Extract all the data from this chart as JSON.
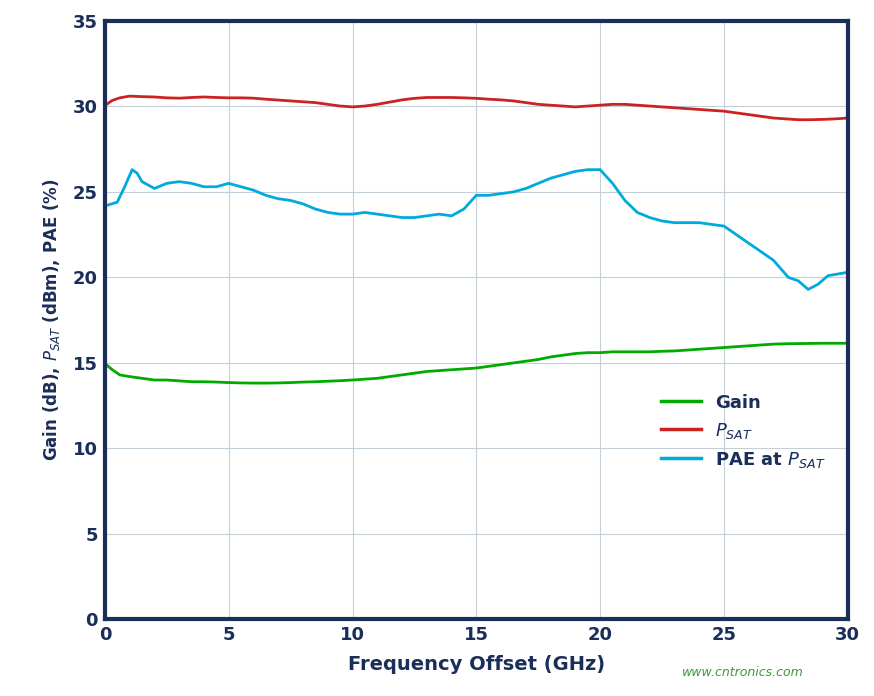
{
  "xlabel": "Frequency Offset (GHz)",
  "xlim": [
    0,
    30
  ],
  "ylim": [
    0,
    35
  ],
  "xticks": [
    0,
    5,
    10,
    15,
    20,
    25,
    30
  ],
  "yticks": [
    0,
    5,
    10,
    15,
    20,
    25,
    30,
    35
  ],
  "bg_color": "#ffffff",
  "grid_color": "#c5cfd8",
  "axis_color": "#1a2e5a",
  "tick_color": "#1a2e5a",
  "label_color": "#1a2e5a",
  "watermark": "www.cntronics.com",
  "watermark_color": "#3a9a3a",
  "line_width": 2.0,
  "gain_color": "#00aa00",
  "psat_color": "#cc2222",
  "pae_color": "#00aadd",
  "gain_x": [
    0.05,
    0.3,
    0.6,
    1.0,
    1.5,
    2.0,
    2.5,
    3.0,
    3.5,
    4.0,
    4.5,
    5.0,
    5.5,
    6.0,
    6.5,
    7.0,
    7.5,
    8.0,
    8.5,
    9.0,
    9.5,
    10.0,
    10.5,
    11.0,
    11.5,
    12.0,
    12.5,
    13.0,
    13.5,
    14.0,
    14.5,
    15.0,
    15.5,
    16.0,
    16.5,
    17.0,
    17.5,
    18.0,
    18.5,
    19.0,
    19.5,
    20.0,
    20.5,
    21.0,
    21.5,
    22.0,
    22.5,
    23.0,
    23.5,
    24.0,
    24.5,
    25.0,
    25.5,
    26.0,
    26.5,
    27.0,
    27.5,
    28.0,
    28.5,
    29.0,
    29.5,
    30.0
  ],
  "gain_y": [
    14.9,
    14.6,
    14.3,
    14.2,
    14.1,
    14.0,
    14.0,
    13.95,
    13.9,
    13.9,
    13.88,
    13.85,
    13.83,
    13.82,
    13.82,
    13.83,
    13.85,
    13.88,
    13.9,
    13.93,
    13.96,
    14.0,
    14.05,
    14.1,
    14.2,
    14.3,
    14.4,
    14.5,
    14.55,
    14.6,
    14.65,
    14.7,
    14.8,
    14.9,
    15.0,
    15.1,
    15.2,
    15.35,
    15.45,
    15.55,
    15.6,
    15.6,
    15.65,
    15.65,
    15.65,
    15.65,
    15.68,
    15.7,
    15.75,
    15.8,
    15.85,
    15.9,
    15.95,
    16.0,
    16.05,
    16.1,
    16.12,
    16.13,
    16.14,
    16.15,
    16.15,
    16.15
  ],
  "psat_x": [
    0.05,
    0.3,
    0.6,
    1.0,
    1.5,
    2.0,
    2.5,
    3.0,
    3.5,
    4.0,
    4.5,
    5.0,
    5.5,
    6.0,
    6.5,
    7.0,
    7.5,
    8.0,
    8.5,
    9.0,
    9.5,
    10.0,
    10.5,
    11.0,
    11.5,
    12.0,
    12.5,
    13.0,
    13.5,
    14.0,
    14.5,
    15.0,
    15.5,
    16.0,
    16.5,
    17.0,
    17.5,
    18.0,
    18.5,
    19.0,
    19.5,
    20.0,
    20.5,
    21.0,
    21.5,
    22.0,
    22.5,
    23.0,
    23.5,
    24.0,
    24.5,
    25.0,
    25.5,
    26.0,
    26.5,
    27.0,
    27.5,
    28.0,
    28.5,
    29.0,
    29.5,
    30.0
  ],
  "psat_y": [
    30.1,
    30.35,
    30.5,
    30.6,
    30.57,
    30.55,
    30.5,
    30.48,
    30.52,
    30.55,
    30.52,
    30.5,
    30.5,
    30.48,
    30.42,
    30.37,
    30.32,
    30.27,
    30.22,
    30.12,
    30.02,
    29.97,
    30.02,
    30.12,
    30.25,
    30.38,
    30.47,
    30.52,
    30.52,
    30.52,
    30.5,
    30.47,
    30.42,
    30.38,
    30.32,
    30.22,
    30.12,
    30.07,
    30.02,
    29.97,
    30.02,
    30.07,
    30.12,
    30.12,
    30.07,
    30.02,
    29.97,
    29.92,
    29.87,
    29.82,
    29.77,
    29.72,
    29.62,
    29.52,
    29.42,
    29.32,
    29.27,
    29.22,
    29.22,
    29.24,
    29.27,
    29.32
  ],
  "pae_x": [
    0.05,
    0.5,
    0.8,
    1.1,
    1.3,
    1.5,
    2.0,
    2.5,
    3.0,
    3.5,
    4.0,
    4.5,
    5.0,
    5.5,
    6.0,
    6.5,
    7.0,
    7.5,
    8.0,
    8.5,
    9.0,
    9.5,
    10.0,
    10.5,
    11.0,
    11.5,
    12.0,
    12.5,
    13.0,
    13.5,
    14.0,
    14.5,
    15.0,
    15.5,
    16.0,
    16.5,
    17.0,
    17.5,
    18.0,
    18.5,
    19.0,
    19.5,
    20.0,
    20.5,
    21.0,
    21.5,
    22.0,
    22.5,
    23.0,
    23.5,
    24.0,
    24.5,
    25.0,
    25.5,
    26.0,
    26.5,
    27.0,
    27.3,
    27.6,
    28.0,
    28.4,
    28.8,
    29.2,
    29.6,
    30.0
  ],
  "pae_y": [
    24.2,
    24.4,
    25.3,
    26.3,
    26.1,
    25.6,
    25.2,
    25.5,
    25.6,
    25.5,
    25.3,
    25.3,
    25.5,
    25.3,
    25.1,
    24.8,
    24.6,
    24.5,
    24.3,
    24.0,
    23.8,
    23.7,
    23.7,
    23.8,
    23.7,
    23.6,
    23.5,
    23.5,
    23.6,
    23.7,
    23.6,
    24.0,
    24.8,
    24.8,
    24.9,
    25.0,
    25.2,
    25.5,
    25.8,
    26.0,
    26.2,
    26.3,
    26.3,
    25.5,
    24.5,
    23.8,
    23.5,
    23.3,
    23.2,
    23.2,
    23.2,
    23.1,
    23.0,
    22.5,
    22.0,
    21.5,
    21.0,
    20.5,
    20.0,
    19.8,
    19.3,
    19.6,
    20.1,
    20.2,
    20.3
  ]
}
